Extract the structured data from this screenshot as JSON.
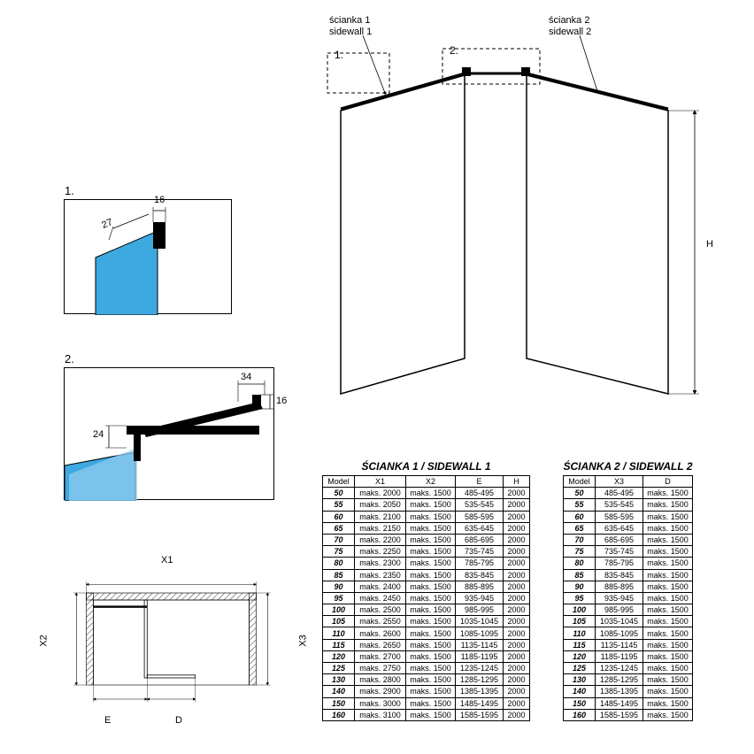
{
  "colors": {
    "stroke": "#000000",
    "glass": "#3ea9e0",
    "glass_light": "#96cff0",
    "bg": "#ffffff",
    "dash": "#000000"
  },
  "labels": {
    "scianka1_line1": "ścianka 1",
    "scianka1_line2": "sidewall 1",
    "scianka2_line1": "ścianka 2",
    "scianka2_line2": "sidewall 2",
    "H": "H",
    "one": "1.",
    "two": "2.",
    "detail1_num": "1.",
    "detail2_num": "2.",
    "d16": "16",
    "d27": "27",
    "d34": "34",
    "d16b": "16",
    "d24": "24",
    "X1": "X1",
    "X2": "X2",
    "X3": "X3",
    "E": "E",
    "D": "D"
  },
  "table1": {
    "title": "ŚCIANKA 1 / SIDEWALL 1",
    "headers": [
      "Model",
      "X1",
      "X2",
      "E",
      "H"
    ],
    "rows": [
      [
        "50",
        "maks. 2000",
        "maks. 1500",
        "485-495",
        "2000"
      ],
      [
        "55",
        "maks. 2050",
        "maks. 1500",
        "535-545",
        "2000"
      ],
      [
        "60",
        "maks. 2100",
        "maks. 1500",
        "585-595",
        "2000"
      ],
      [
        "65",
        "maks. 2150",
        "maks. 1500",
        "635-645",
        "2000"
      ],
      [
        "70",
        "maks. 2200",
        "maks. 1500",
        "685-695",
        "2000"
      ],
      [
        "75",
        "maks. 2250",
        "maks. 1500",
        "735-745",
        "2000"
      ],
      [
        "80",
        "maks. 2300",
        "maks. 1500",
        "785-795",
        "2000"
      ],
      [
        "85",
        "maks. 2350",
        "maks. 1500",
        "835-845",
        "2000"
      ],
      [
        "90",
        "maks. 2400",
        "maks. 1500",
        "885-895",
        "2000"
      ],
      [
        "95",
        "maks. 2450",
        "maks. 1500",
        "935-945",
        "2000"
      ],
      [
        "100",
        "maks. 2500",
        "maks. 1500",
        "985-995",
        "2000"
      ],
      [
        "105",
        "maks. 2550",
        "maks. 1500",
        "1035-1045",
        "2000"
      ],
      [
        "110",
        "maks. 2600",
        "maks. 1500",
        "1085-1095",
        "2000"
      ],
      [
        "115",
        "maks. 2650",
        "maks. 1500",
        "1135-1145",
        "2000"
      ],
      [
        "120",
        "maks. 2700",
        "maks. 1500",
        "1185-1195",
        "2000"
      ],
      [
        "125",
        "maks. 2750",
        "maks. 1500",
        "1235-1245",
        "2000"
      ],
      [
        "130",
        "maks. 2800",
        "maks. 1500",
        "1285-1295",
        "2000"
      ],
      [
        "140",
        "maks. 2900",
        "maks. 1500",
        "1385-1395",
        "2000"
      ],
      [
        "150",
        "maks. 3000",
        "maks. 1500",
        "1485-1495",
        "2000"
      ],
      [
        "160",
        "maks. 3100",
        "maks. 1500",
        "1585-1595",
        "2000"
      ]
    ]
  },
  "table2": {
    "title": "ŚCIANKA 2 / SIDEWALL 2",
    "headers": [
      "Model",
      "X3",
      "D"
    ],
    "rows": [
      [
        "50",
        "485-495",
        "maks. 1500"
      ],
      [
        "55",
        "535-545",
        "maks. 1500"
      ],
      [
        "60",
        "585-595",
        "maks. 1500"
      ],
      [
        "65",
        "635-645",
        "maks. 1500"
      ],
      [
        "70",
        "685-695",
        "maks. 1500"
      ],
      [
        "75",
        "735-745",
        "maks. 1500"
      ],
      [
        "80",
        "785-795",
        "maks. 1500"
      ],
      [
        "85",
        "835-845",
        "maks. 1500"
      ],
      [
        "90",
        "885-895",
        "maks. 1500"
      ],
      [
        "95",
        "935-945",
        "maks. 1500"
      ],
      [
        "100",
        "985-995",
        "maks. 1500"
      ],
      [
        "105",
        "1035-1045",
        "maks. 1500"
      ],
      [
        "110",
        "1085-1095",
        "maks. 1500"
      ],
      [
        "115",
        "1135-1145",
        "maks. 1500"
      ],
      [
        "120",
        "1185-1195",
        "maks. 1500"
      ],
      [
        "125",
        "1235-1245",
        "maks. 1500"
      ],
      [
        "130",
        "1285-1295",
        "maks. 1500"
      ],
      [
        "140",
        "1385-1395",
        "maks. 1500"
      ],
      [
        "150",
        "1485-1495",
        "maks. 1500"
      ],
      [
        "160",
        "1585-1595",
        "maks. 1500"
      ]
    ]
  }
}
